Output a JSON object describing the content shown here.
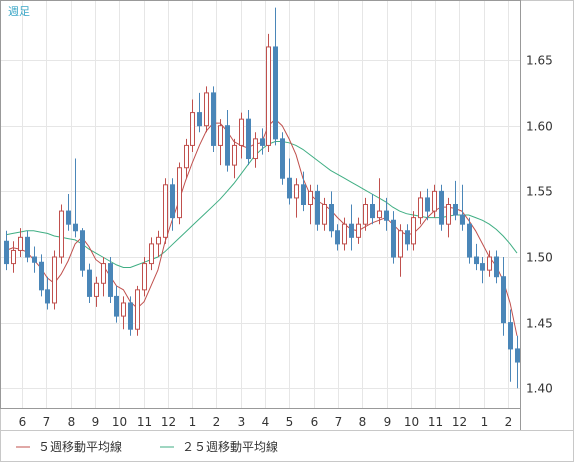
{
  "chart_data": {
    "type": "candlestick",
    "period_label": "週足",
    "ylim": [
      1.385,
      1.695
    ],
    "y_ticks": [
      "1.65",
      "1.60",
      "1.55",
      "1.50",
      "1.45",
      "1.40"
    ],
    "x_tick_labels": [
      "6",
      "7",
      "8",
      "9",
      "10",
      "11",
      "12",
      "1",
      "2",
      "3",
      "4",
      "5",
      "6",
      "7",
      "8",
      "9",
      "10",
      "11",
      "12",
      "1",
      "2"
    ],
    "legend": [
      {
        "name": "５週移動平均線",
        "color": "#c0504d"
      },
      {
        "name": "２５週移動平均線",
        "color": "#3fae83"
      }
    ],
    "colors": {
      "up": "#c0504d",
      "down": "#4a86b8",
      "ma5": "#c0504d",
      "ma25": "#3fae83",
      "period_label": "#3aa6c6"
    },
    "candles": [
      [
        1.512,
        1.52,
        1.49,
        1.495
      ],
      [
        1.495,
        1.512,
        1.488,
        1.505
      ],
      [
        1.505,
        1.522,
        1.5,
        1.515
      ],
      [
        1.515,
        1.52,
        1.496,
        1.5
      ],
      [
        1.5,
        1.508,
        1.488,
        1.496
      ],
      [
        1.496,
        1.502,
        1.47,
        1.475
      ],
      [
        1.475,
        1.485,
        1.46,
        1.465
      ],
      [
        1.465,
        1.505,
        1.46,
        1.5
      ],
      [
        1.5,
        1.54,
        1.495,
        1.535
      ],
      [
        1.535,
        1.548,
        1.52,
        1.525
      ],
      [
        1.525,
        1.575,
        1.515,
        1.52
      ],
      [
        1.52,
        1.522,
        1.485,
        1.49
      ],
      [
        1.49,
        1.495,
        1.465,
        1.47
      ],
      [
        1.47,
        1.485,
        1.462,
        1.48
      ],
      [
        1.48,
        1.5,
        1.47,
        1.495
      ],
      [
        1.495,
        1.5,
        1.465,
        1.47
      ],
      [
        1.47,
        1.478,
        1.45,
        1.455
      ],
      [
        1.455,
        1.47,
        1.445,
        1.465
      ],
      [
        1.465,
        1.47,
        1.44,
        1.445
      ],
      [
        1.445,
        1.478,
        1.44,
        1.475
      ],
      [
        1.475,
        1.5,
        1.47,
        1.495
      ],
      [
        1.495,
        1.515,
        1.49,
        1.51
      ],
      [
        1.51,
        1.52,
        1.5,
        1.515
      ],
      [
        1.515,
        1.56,
        1.51,
        1.555
      ],
      [
        1.555,
        1.56,
        1.52,
        1.53
      ],
      [
        1.53,
        1.572,
        1.525,
        1.568
      ],
      [
        1.568,
        1.59,
        1.56,
        1.585
      ],
      [
        1.585,
        1.62,
        1.58,
        1.61
      ],
      [
        1.61,
        1.625,
        1.595,
        1.6
      ],
      [
        1.6,
        1.63,
        1.595,
        1.625
      ],
      [
        1.625,
        1.63,
        1.58,
        1.585
      ],
      [
        1.585,
        1.605,
        1.57,
        1.6
      ],
      [
        1.6,
        1.612,
        1.565,
        1.57
      ],
      [
        1.57,
        1.59,
        1.56,
        1.585
      ],
      [
        1.585,
        1.61,
        1.575,
        1.605
      ],
      [
        1.605,
        1.612,
        1.57,
        1.575
      ],
      [
        1.575,
        1.595,
        1.568,
        1.59
      ],
      [
        1.59,
        1.598,
        1.578,
        1.585
      ],
      [
        1.585,
        1.67,
        1.58,
        1.66
      ],
      [
        1.66,
        1.69,
        1.585,
        1.59
      ],
      [
        1.59,
        1.595,
        1.555,
        1.56
      ],
      [
        1.56,
        1.575,
        1.54,
        1.545
      ],
      [
        1.545,
        1.56,
        1.53,
        1.555
      ],
      [
        1.555,
        1.565,
        1.535,
        1.54
      ],
      [
        1.54,
        1.555,
        1.525,
        1.55
      ],
      [
        1.55,
        1.555,
        1.52,
        1.525
      ],
      [
        1.525,
        1.545,
        1.52,
        1.54
      ],
      [
        1.54,
        1.55,
        1.515,
        1.52
      ],
      [
        1.52,
        1.525,
        1.505,
        1.51
      ],
      [
        1.51,
        1.53,
        1.505,
        1.525
      ],
      [
        1.525,
        1.54,
        1.505,
        1.515
      ],
      [
        1.515,
        1.53,
        1.51,
        1.525
      ],
      [
        1.525,
        1.545,
        1.52,
        1.54
      ],
      [
        1.54,
        1.548,
        1.525,
        1.53
      ],
      [
        1.53,
        1.56,
        1.525,
        1.535
      ],
      [
        1.535,
        1.545,
        1.52,
        1.528
      ],
      [
        1.528,
        1.535,
        1.495,
        1.5
      ],
      [
        1.5,
        1.525,
        1.485,
        1.52
      ],
      [
        1.52,
        1.525,
        1.505,
        1.51
      ],
      [
        1.51,
        1.535,
        1.505,
        1.53
      ],
      [
        1.53,
        1.55,
        1.525,
        1.545
      ],
      [
        1.545,
        1.552,
        1.528,
        1.535
      ],
      [
        1.535,
        1.555,
        1.53,
        1.55
      ],
      [
        1.55,
        1.555,
        1.52,
        1.525
      ],
      [
        1.525,
        1.545,
        1.515,
        1.54
      ],
      [
        1.54,
        1.558,
        1.528,
        1.532
      ],
      [
        1.532,
        1.555,
        1.52,
        1.525
      ],
      [
        1.525,
        1.53,
        1.495,
        1.5
      ],
      [
        1.5,
        1.51,
        1.49,
        1.495
      ],
      [
        1.495,
        1.5,
        1.48,
        1.49
      ],
      [
        1.49,
        1.505,
        1.485,
        1.5
      ],
      [
        1.5,
        1.505,
        1.48,
        1.485
      ],
      [
        1.485,
        1.5,
        1.44,
        1.45
      ],
      [
        1.45,
        1.46,
        1.405,
        1.43
      ],
      [
        1.43,
        1.44,
        1.4,
        1.42
      ]
    ],
    "ma5": [
      1.505,
      1.507,
      1.506,
      1.504,
      1.498,
      1.492,
      1.484,
      1.48,
      1.487,
      1.497,
      1.51,
      1.515,
      1.508,
      1.498,
      1.494,
      1.486,
      1.478,
      1.475,
      1.466,
      1.461,
      1.466,
      1.478,
      1.49,
      1.511,
      1.527,
      1.542,
      1.558,
      1.572,
      1.585,
      1.596,
      1.602,
      1.602,
      1.596,
      1.588,
      1.585,
      1.583,
      1.586,
      1.587,
      1.6,
      1.605,
      1.6,
      1.59,
      1.578,
      1.56,
      1.548,
      1.543,
      1.54,
      1.536,
      1.53,
      1.525,
      1.521,
      1.52,
      1.523,
      1.526,
      1.528,
      1.53,
      1.525,
      1.52,
      1.517,
      1.518,
      1.523,
      1.53,
      1.535,
      1.538,
      1.538,
      1.537,
      1.535,
      1.528,
      1.52,
      1.51,
      1.5,
      1.493,
      1.482,
      1.465,
      1.44
    ],
    "ma25": [
      1.517,
      1.518,
      1.519,
      1.52,
      1.52,
      1.519,
      1.518,
      1.516,
      1.515,
      1.514,
      1.513,
      1.51,
      1.506,
      1.503,
      1.5,
      1.497,
      1.494,
      1.492,
      1.492,
      1.494,
      1.496,
      1.498,
      1.5,
      1.504,
      1.509,
      1.514,
      1.519,
      1.524,
      1.529,
      1.534,
      1.539,
      1.544,
      1.55,
      1.556,
      1.563,
      1.57,
      1.577,
      1.582,
      1.586,
      1.588,
      1.588,
      1.587,
      1.585,
      1.582,
      1.578,
      1.574,
      1.57,
      1.566,
      1.563,
      1.56,
      1.557,
      1.554,
      1.551,
      1.548,
      1.545,
      1.542,
      1.538,
      1.535,
      1.533,
      1.532,
      1.531,
      1.53,
      1.53,
      1.53,
      1.531,
      1.532,
      1.532,
      1.532,
      1.53,
      1.528,
      1.525,
      1.521,
      1.516,
      1.51,
      1.503
    ]
  }
}
